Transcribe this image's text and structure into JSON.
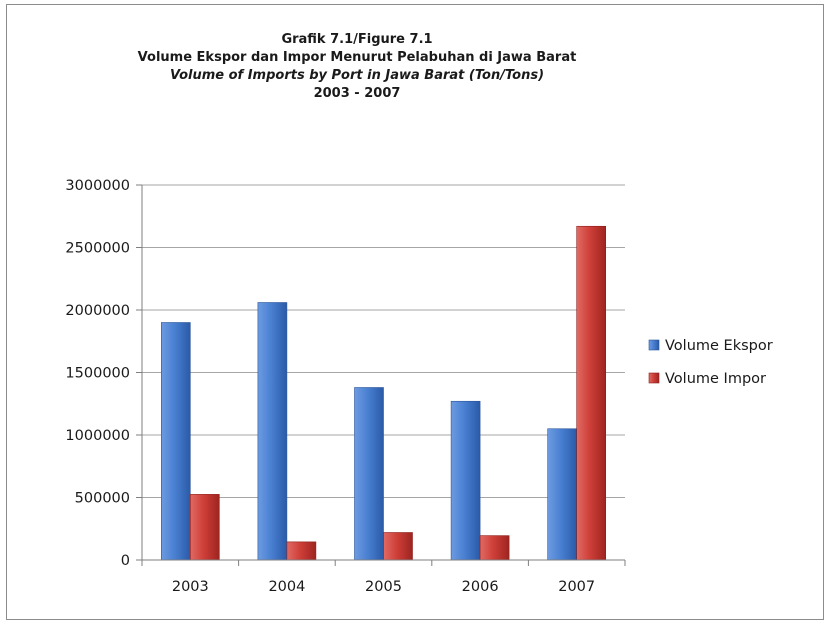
{
  "chart_data": {
    "type": "bar",
    "title_lines": [
      "Grafik 7.1/Figure 7.1",
      "Volume Ekspor dan Impor Menurut Pelabuhan di Jawa Barat",
      "Volume of Imports by Port in Jawa Barat (Ton/Tons)",
      "2003 - 2007"
    ],
    "categories": [
      "2003",
      "2004",
      "2005",
      "2006",
      "2007"
    ],
    "series": [
      {
        "name": "Volume Ekspor",
        "values": [
          1900000,
          2060000,
          1380000,
          1270000,
          1050000
        ],
        "color": "#3a6fc4"
      },
      {
        "name": "Volume Impor",
        "values": [
          525000,
          145000,
          220000,
          195000,
          2670000
        ],
        "color": "#c0302c"
      }
    ],
    "yticks": [
      "0",
      "500000",
      "1000000",
      "1500000",
      "2000000",
      "2500000",
      "3000000"
    ],
    "ylim": [
      0,
      3000000
    ],
    "grid": true,
    "legend_position": "right"
  }
}
